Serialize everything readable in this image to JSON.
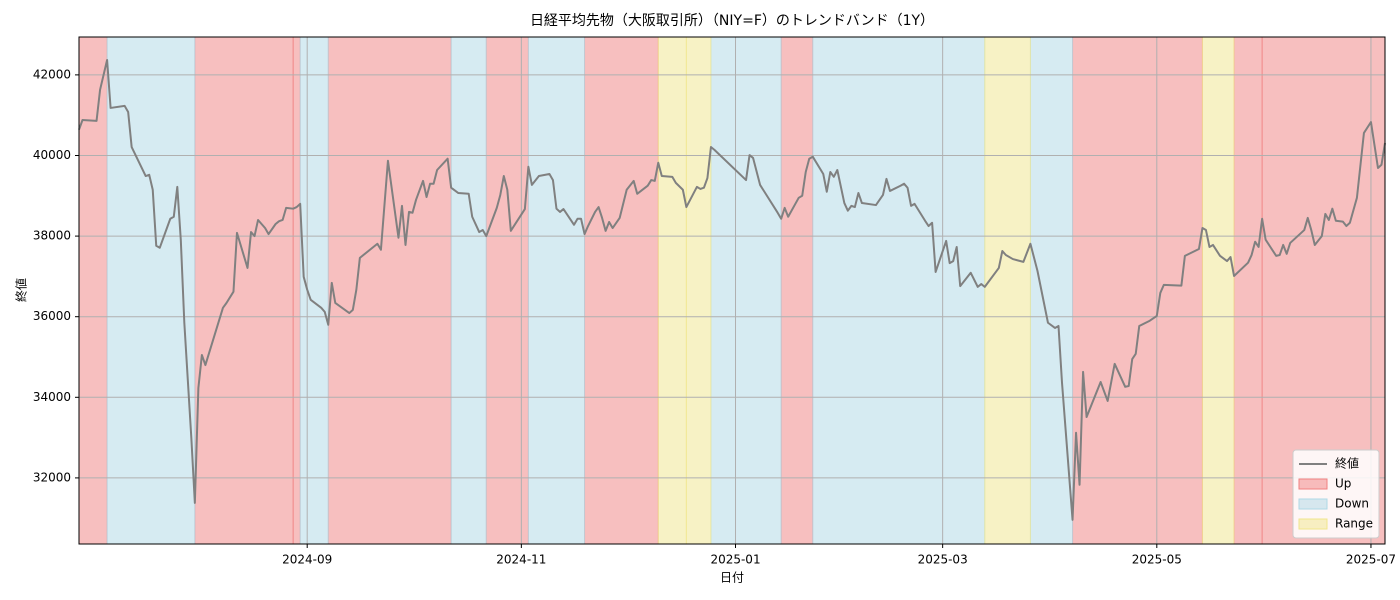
{
  "chart_data": {
    "type": "line",
    "title": "日経平均先物（大阪取引所）（NIY=F）のトレンドバンド（1Y）",
    "x_label": "日付",
    "y_label": "終値",
    "xlim": [
      "2024-06-28",
      "2025-07-05"
    ],
    "xticks": [
      {
        "value": "2024-09-01",
        "label": "2024-09"
      },
      {
        "value": "2024-11-01",
        "label": "2024-11"
      },
      {
        "value": "2025-01-01",
        "label": "2025-01"
      },
      {
        "value": "2025-03-01",
        "label": "2025-03"
      },
      {
        "value": "2025-05-01",
        "label": "2025-05"
      },
      {
        "value": "2025-07-01",
        "label": "2025-07"
      }
    ],
    "ylim": [
      30360,
      42940
    ],
    "yticks": [
      32000,
      34000,
      36000,
      38000,
      40000,
      42000
    ],
    "grid": true,
    "legend_position": "lower right",
    "x": [
      "2024-06-28",
      "2024-06-29",
      "2024-07-03",
      "2024-07-04",
      "2024-07-06",
      "2024-07-07",
      "2024-07-11",
      "2024-07-12",
      "2024-07-13",
      "2024-07-17",
      "2024-07-18",
      "2024-07-19",
      "2024-07-20",
      "2024-07-21",
      "2024-07-24",
      "2024-07-25",
      "2024-07-26",
      "2024-07-27",
      "2024-07-28",
      "2024-07-30",
      "2024-07-31",
      "2024-08-01",
      "2024-08-02",
      "2024-08-03",
      "2024-08-08",
      "2024-08-09",
      "2024-08-11",
      "2024-08-12",
      "2024-08-15",
      "2024-08-16",
      "2024-08-17",
      "2024-08-18",
      "2024-08-20",
      "2024-08-21",
      "2024-08-23",
      "2024-08-24",
      "2024-08-25",
      "2024-08-26",
      "2024-08-28",
      "2024-08-29",
      "2024-08-30",
      "2024-08-31",
      "2024-09-01",
      "2024-09-02",
      "2024-09-05",
      "2024-09-06",
      "2024-09-07",
      "2024-09-08",
      "2024-09-09",
      "2024-09-13",
      "2024-09-14",
      "2024-09-15",
      "2024-09-16",
      "2024-09-21",
      "2024-09-22",
      "2024-09-24",
      "2024-09-27",
      "2024-09-28",
      "2024-09-29",
      "2024-09-30",
      "2024-10-01",
      "2024-10-02",
      "2024-10-04",
      "2024-10-05",
      "2024-10-06",
      "2024-10-07",
      "2024-10-08",
      "2024-10-11",
      "2024-10-12",
      "2024-10-14",
      "2024-10-17",
      "2024-10-18",
      "2024-10-20",
      "2024-10-21",
      "2024-10-22",
      "2024-10-25",
      "2024-10-26",
      "2024-10-27",
      "2024-10-28",
      "2024-10-29",
      "2024-11-02",
      "2024-11-03",
      "2024-11-04",
      "2024-11-06",
      "2024-11-09",
      "2024-11-10",
      "2024-11-11",
      "2024-11-12",
      "2024-11-13",
      "2024-11-16",
      "2024-11-17",
      "2024-11-18",
      "2024-11-19",
      "2024-11-20",
      "2024-11-22",
      "2024-11-23",
      "2024-11-24",
      "2024-11-25",
      "2024-11-26",
      "2024-11-27",
      "2024-11-29",
      "2024-12-01",
      "2024-12-03",
      "2024-12-04",
      "2024-12-07",
      "2024-12-08",
      "2024-12-09",
      "2024-12-10",
      "2024-12-11",
      "2024-12-14",
      "2024-12-15",
      "2024-12-17",
      "2024-12-18",
      "2024-12-21",
      "2024-12-22",
      "2024-12-23",
      "2024-12-24",
      "2024-12-25",
      "2024-12-26",
      "2025-01-04",
      "2025-01-05",
      "2025-01-06",
      "2025-01-08",
      "2025-01-13",
      "2025-01-14",
      "2025-01-15",
      "2025-01-16",
      "2025-01-19",
      "2025-01-20",
      "2025-01-21",
      "2025-01-22",
      "2025-01-23",
      "2025-01-26",
      "2025-01-27",
      "2025-01-28",
      "2025-01-29",
      "2025-01-30",
      "2025-02-01",
      "2025-02-02",
      "2025-02-03",
      "2025-02-04",
      "2025-02-05",
      "2025-02-06",
      "2025-02-10",
      "2025-02-12",
      "2025-02-13",
      "2025-02-14",
      "2025-02-17",
      "2025-02-18",
      "2025-02-19",
      "2025-02-20",
      "2025-02-21",
      "2025-02-24",
      "2025-02-25",
      "2025-02-26",
      "2025-02-27",
      "2025-03-02",
      "2025-03-03",
      "2025-03-04",
      "2025-03-05",
      "2025-03-06",
      "2025-03-09",
      "2025-03-11",
      "2025-03-12",
      "2025-03-13",
      "2025-03-17",
      "2025-03-18",
      "2025-03-19",
      "2025-03-21",
      "2025-03-24",
      "2025-03-26",
      "2025-03-28",
      "2025-03-31",
      "2025-04-02",
      "2025-04-03",
      "2025-04-04",
      "2025-04-07",
      "2025-04-08",
      "2025-04-09",
      "2025-04-10",
      "2025-04-11",
      "2025-04-15",
      "2025-04-17",
      "2025-04-19",
      "2025-04-22",
      "2025-04-23",
      "2025-04-24",
      "2025-04-25",
      "2025-04-26",
      "2025-04-29",
      "2025-05-01",
      "2025-05-02",
      "2025-05-03",
      "2025-05-08",
      "2025-05-09",
      "2025-05-13",
      "2025-05-14",
      "2025-05-15",
      "2025-05-16",
      "2025-05-17",
      "2025-05-19",
      "2025-05-21",
      "2025-05-22",
      "2025-05-23",
      "2025-05-27",
      "2025-05-28",
      "2025-05-29",
      "2025-05-30",
      "2025-05-31",
      "2025-06-01",
      "2025-06-04",
      "2025-06-05",
      "2025-06-06",
      "2025-06-07",
      "2025-06-08",
      "2025-06-12",
      "2025-06-13",
      "2025-06-14",
      "2025-06-15",
      "2025-06-17",
      "2025-06-18",
      "2025-06-19",
      "2025-06-20",
      "2025-06-21",
      "2025-06-23",
      "2025-06-24",
      "2025-06-25",
      "2025-06-27",
      "2025-06-29",
      "2025-07-01",
      "2025-07-03",
      "2025-07-04",
      "2025-07-05"
    ],
    "series": [
      {
        "name": "終値",
        "color": "#808080",
        "values": [
          40640,
          40880,
          40860,
          41630,
          42370,
          41180,
          41230,
          41080,
          40210,
          39490,
          39520,
          39150,
          37760,
          37710,
          38430,
          38480,
          39220,
          37900,
          35850,
          32990,
          31380,
          34230,
          35050,
          34800,
          36220,
          36340,
          36620,
          38080,
          37210,
          38100,
          38000,
          38400,
          38200,
          38050,
          38300,
          38370,
          38400,
          38700,
          38680,
          38720,
          38800,
          36990,
          36670,
          36420,
          36220,
          36120,
          35800,
          36840,
          36340,
          36090,
          36170,
          36670,
          37460,
          37810,
          37660,
          39870,
          37960,
          38750,
          37780,
          38600,
          38580,
          38900,
          39370,
          38970,
          39300,
          39300,
          39640,
          39920,
          39200,
          39070,
          39050,
          38480,
          38100,
          38150,
          38000,
          38700,
          39020,
          39490,
          39150,
          38130,
          38670,
          39720,
          39270,
          39490,
          39540,
          39390,
          38680,
          38600,
          38670,
          38280,
          38430,
          38430,
          38050,
          38250,
          38600,
          38720,
          38450,
          38130,
          38350,
          38200,
          38450,
          39150,
          39370,
          39050,
          39250,
          39390,
          39370,
          39820,
          39490,
          39470,
          39320,
          39150,
          38720,
          39220,
          39170,
          39200,
          39440,
          40210,
          40140,
          39390,
          40010,
          39940,
          39270,
          38580,
          38430,
          38700,
          38480,
          38950,
          39000,
          39590,
          39920,
          39970,
          39540,
          39100,
          39590,
          39470,
          39640,
          38820,
          38630,
          38750,
          38720,
          39070,
          38820,
          38770,
          39020,
          39420,
          39120,
          39250,
          39300,
          39200,
          38750,
          38800,
          38380,
          38250,
          38330,
          37110,
          37880,
          37330,
          37380,
          37730,
          36760,
          37090,
          36740,
          36810,
          36740,
          37210,
          37630,
          37530,
          37430,
          37360,
          37810,
          37140,
          35850,
          35720,
          35770,
          34360,
          30960,
          33120,
          31830,
          34630,
          33510,
          34380,
          33910,
          34830,
          34260,
          34280,
          34950,
          35080,
          35770,
          35900,
          36020,
          36590,
          36790,
          36770,
          37510,
          37680,
          38200,
          38150,
          37730,
          37780,
          37510,
          37380,
          37480,
          37010,
          37340,
          37530,
          37860,
          37730,
          38430,
          37910,
          37510,
          37530,
          37780,
          37560,
          37830,
          38150,
          38450,
          38150,
          37780,
          38000,
          38550,
          38400,
          38680,
          38380,
          38360,
          38250,
          38330,
          38950,
          40560,
          40830,
          39690,
          39770,
          40310
        ]
      }
    ],
    "bands": [
      {
        "name": "Up",
        "color": "#f08080",
        "ranges": [
          [
            "2024-06-28",
            "2024-07-06"
          ],
          [
            "2024-07-31",
            "2024-08-28"
          ],
          [
            "2024-08-28",
            "2024-08-30"
          ],
          [
            "2024-09-07",
            "2024-10-12"
          ],
          [
            "2024-10-22",
            "2024-11-03"
          ],
          [
            "2024-11-19",
            "2024-12-10"
          ],
          [
            "2025-01-14",
            "2025-01-23"
          ],
          [
            "2025-04-07",
            "2025-05-14"
          ],
          [
            "2025-05-23",
            "2025-05-31"
          ],
          [
            "2025-05-31",
            "2025-07-05"
          ]
        ]
      },
      {
        "name": "Down",
        "color": "#add8e6",
        "ranges": [
          [
            "2024-07-06",
            "2024-07-31"
          ],
          [
            "2024-08-30",
            "2024-09-07"
          ],
          [
            "2024-10-12",
            "2024-10-22"
          ],
          [
            "2024-11-03",
            "2024-11-19"
          ],
          [
            "2024-12-25",
            "2025-01-14"
          ],
          [
            "2025-01-23",
            "2025-03-13"
          ],
          [
            "2025-03-26",
            "2025-04-07"
          ]
        ]
      },
      {
        "name": "Range",
        "color": "#f0e68c",
        "ranges": [
          [
            "2024-12-10",
            "2024-12-18"
          ],
          [
            "2024-12-18",
            "2024-12-25"
          ],
          [
            "2025-03-13",
            "2025-03-26"
          ],
          [
            "2025-05-14",
            "2025-05-23"
          ]
        ]
      }
    ]
  }
}
